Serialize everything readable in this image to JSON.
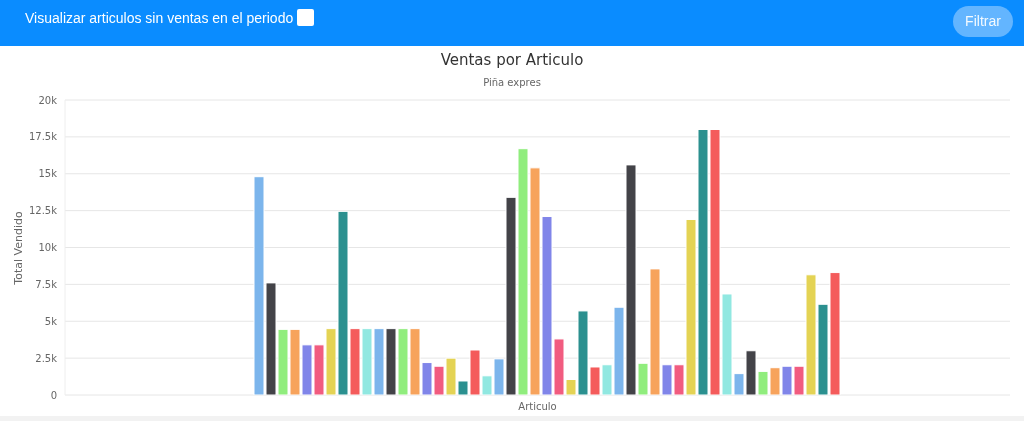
{
  "chart_data": {
    "type": "bar",
    "title": "Ventas por Articulo",
    "subtitle": "Piña expres",
    "xlabel": "Articulo",
    "ylabel": "Total Vendido",
    "annotations": [
      "Visualizar articulos sin ventas en el periodo",
      "Filtrar"
    ],
    "categories": [
      null
    ],
    "series": [
      {
        "color": "#7cb5ec",
        "values": [
          14800
        ]
      },
      {
        "color": "#434348",
        "values": [
          7600
        ]
      },
      {
        "color": "#90ed7d",
        "values": [
          4450
        ]
      },
      {
        "color": "#f7a35c",
        "values": [
          4450
        ]
      },
      {
        "color": "#8085e9",
        "values": [
          3400
        ]
      },
      {
        "color": "#f15c80",
        "values": [
          3400
        ]
      },
      {
        "color": "#e4d354",
        "values": [
          4500
        ]
      },
      {
        "color": "#2b908f",
        "values": [
          12450
        ]
      },
      {
        "color": "#f45b5b",
        "values": [
          4500
        ]
      },
      {
        "color": "#91e8e1",
        "values": [
          4500
        ]
      },
      {
        "color": "#7cb5ec",
        "values": [
          4500
        ]
      },
      {
        "color": "#434348",
        "values": [
          4500
        ]
      },
      {
        "color": "#90ed7d",
        "values": [
          4500
        ]
      },
      {
        "color": "#f7a35c",
        "values": [
          4500
        ]
      },
      {
        "color": "#8085e9",
        "values": [
          2200
        ]
      },
      {
        "color": "#f15c80",
        "values": [
          1950
        ]
      },
      {
        "color": "#e4d354",
        "values": [
          2500
        ]
      },
      {
        "color": "#2b908f",
        "values": [
          950
        ]
      },
      {
        "color": "#f45b5b",
        "values": [
          3050
        ]
      },
      {
        "color": "#91e8e1",
        "values": [
          1300
        ]
      },
      {
        "color": "#7cb5ec",
        "values": [
          2450
        ]
      },
      {
        "color": "#434348",
        "values": [
          13400
        ]
      },
      {
        "color": "#90ed7d",
        "values": [
          16700
        ]
      },
      {
        "color": "#f7a35c",
        "values": [
          15400
        ]
      },
      {
        "color": "#8085e9",
        "values": [
          12100
        ]
      },
      {
        "color": "#f15c80",
        "values": [
          3800
        ]
      },
      {
        "color": "#e4d354",
        "values": [
          1050
        ]
      },
      {
        "color": "#2b908f",
        "values": [
          5700
        ]
      },
      {
        "color": "#f45b5b",
        "values": [
          1900
        ]
      },
      {
        "color": "#91e8e1",
        "values": [
          2050
        ]
      },
      {
        "color": "#7cb5ec",
        "values": [
          5950
        ]
      },
      {
        "color": "#434348",
        "values": [
          15600
        ]
      },
      {
        "color": "#90ed7d",
        "values": [
          2150
        ]
      },
      {
        "color": "#f7a35c",
        "values": [
          8550
        ]
      },
      {
        "color": "#8085e9",
        "values": [
          2050
        ]
      },
      {
        "color": "#f15c80",
        "values": [
          2050
        ]
      },
      {
        "color": "#e4d354",
        "values": [
          11900
        ]
      },
      {
        "color": "#2b908f",
        "values": [
          18000
        ]
      },
      {
        "color": "#f45b5b",
        "values": [
          18000
        ]
      },
      {
        "color": "#91e8e1",
        "values": [
          6850
        ]
      },
      {
        "color": "#7cb5ec",
        "values": [
          1450
        ]
      },
      {
        "color": "#434348",
        "values": [
          3000
        ]
      },
      {
        "color": "#90ed7d",
        "values": [
          1600
        ]
      },
      {
        "color": "#f7a35c",
        "values": [
          1850
        ]
      },
      {
        "color": "#8085e9",
        "values": [
          1950
        ]
      },
      {
        "color": "#f15c80",
        "values": [
          1950
        ]
      },
      {
        "color": "#e4d354",
        "values": [
          8150
        ]
      },
      {
        "color": "#2b908f",
        "values": [
          6150
        ]
      },
      {
        "color": "#f45b5b",
        "values": [
          8300
        ]
      }
    ],
    "ylim": [
      0,
      20000
    ],
    "yticks": [
      0,
      {
        "value": 2500,
        "label": "2.5k"
      },
      {
        "value": 5000,
        "label": "5k"
      },
      {
        "value": 7500,
        "label": "7.5k"
      },
      {
        "value": 10000,
        "label": "10k"
      },
      {
        "value": 12500,
        "label": "12.5k"
      },
      {
        "value": 15000,
        "label": "15k"
      },
      {
        "value": 17500,
        "label": "17.5k"
      },
      {
        "value": 20000,
        "label": "20k"
      }
    ],
    "grid": "y"
  }
}
